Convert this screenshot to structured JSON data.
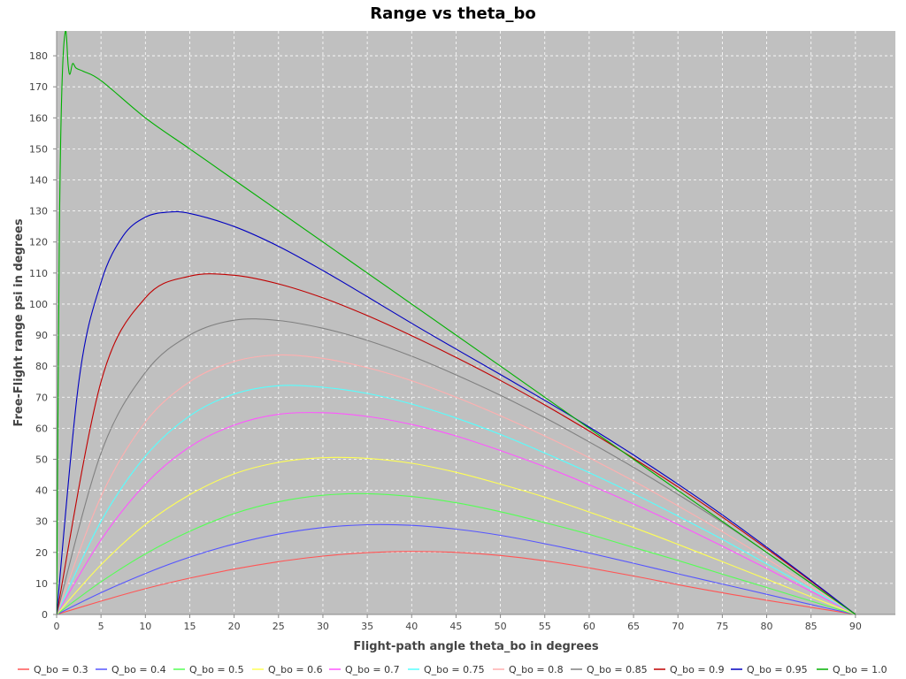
{
  "chart_data": {
    "type": "line",
    "title": "Range vs theta_bo",
    "xlabel": "Flight-path angle theta_bo in degrees",
    "ylabel": "Free-Flight range psi in degrees",
    "xlim": [
      0,
      94.5
    ],
    "ylim": [
      0,
      188
    ],
    "x_ticks": [
      0,
      5,
      10,
      15,
      20,
      25,
      30,
      35,
      40,
      45,
      50,
      55,
      60,
      65,
      70,
      75,
      80,
      85,
      90
    ],
    "y_ticks": [
      0,
      10,
      20,
      30,
      40,
      50,
      60,
      70,
      80,
      90,
      100,
      110,
      120,
      130,
      140,
      150,
      160,
      170,
      180
    ],
    "grid": true,
    "legend_position": "bottom",
    "background_color": "#c0c0c0",
    "series": [
      {
        "name": "Q_bo = 0.3",
        "color": "#ff5555",
        "x": [
          0,
          5,
          10,
          15,
          20,
          25,
          30,
          35,
          40,
          45,
          50,
          55,
          60,
          65,
          70,
          75,
          80,
          85,
          90
        ],
        "values": [
          0,
          4.3,
          8.3,
          11.7,
          14.6,
          17,
          18.8,
          19.9,
          20.3,
          20,
          19,
          17.3,
          15,
          12.4,
          9.6,
          7,
          4.6,
          2.3,
          0
        ]
      },
      {
        "name": "Q_bo = 0.4",
        "color": "#5555ff",
        "x": [
          0,
          5,
          10,
          15,
          20,
          25,
          30,
          35,
          40,
          45,
          50,
          55,
          60,
          65,
          70,
          75,
          80,
          85,
          90
        ],
        "values": [
          0,
          7,
          13.2,
          18.5,
          22.7,
          25.9,
          28,
          28.9,
          28.7,
          27.5,
          25.5,
          22.8,
          19.8,
          16.5,
          13.1,
          9.8,
          6.5,
          3.2,
          0
        ]
      },
      {
        "name": "Q_bo = 0.5",
        "color": "#55ff55",
        "x": [
          0,
          5,
          10,
          15,
          20,
          25,
          30,
          35,
          40,
          45,
          50,
          55,
          60,
          65,
          70,
          75,
          80,
          85,
          90
        ],
        "values": [
          0,
          10.5,
          19.5,
          26.8,
          32.5,
          36.3,
          38.4,
          38.9,
          38,
          36,
          33.1,
          29.6,
          25.8,
          21.6,
          17.4,
          13,
          8.7,
          4.3,
          0
        ]
      },
      {
        "name": "Q_bo = 0.6",
        "color": "#ffff55",
        "x": [
          0,
          5,
          10,
          15,
          20,
          25,
          30,
          35,
          40,
          45,
          50,
          55,
          60,
          65,
          70,
          75,
          80,
          85,
          90
        ],
        "values": [
          0,
          16,
          29,
          38.6,
          45.3,
          49,
          50.5,
          50.3,
          48.7,
          45.8,
          42,
          37.8,
          33,
          28,
          22.6,
          17,
          11.4,
          5.7,
          0
        ]
      },
      {
        "name": "Q_bo = 0.7",
        "color": "#ff55ff",
        "x": [
          0,
          5,
          10,
          15,
          20,
          25,
          30,
          35,
          40,
          45,
          50,
          55,
          60,
          65,
          70,
          75,
          80,
          85,
          90
        ],
        "values": [
          0,
          24,
          42,
          54,
          61,
          64.5,
          65,
          63.8,
          61.2,
          57.5,
          52.8,
          47.6,
          41.8,
          35.6,
          29,
          22,
          14.8,
          7.4,
          0
        ]
      },
      {
        "name": "Q_bo = 0.75",
        "color": "#55ffff",
        "x": [
          0,
          5,
          10,
          15,
          20,
          25,
          30,
          35,
          40,
          45,
          50,
          55,
          60,
          65,
          70,
          75,
          80,
          85,
          90
        ],
        "values": [
          0,
          30,
          51,
          64,
          71,
          73.7,
          73.2,
          71.2,
          67.8,
          63.3,
          58,
          52,
          45.7,
          38.9,
          31.7,
          24.2,
          16.3,
          8.2,
          0
        ]
      },
      {
        "name": "Q_bo = 0.8",
        "color": "#ffafaf",
        "x": [
          0,
          5,
          10,
          15,
          20,
          25,
          30,
          35,
          40,
          45,
          50,
          55,
          60,
          65,
          70,
          75,
          80,
          85,
          90
        ],
        "values": [
          0,
          38,
          62,
          75,
          81.5,
          83.6,
          82.5,
          79.5,
          75.3,
          70,
          64,
          57.5,
          50.5,
          43,
          35,
          26.7,
          18,
          9,
          0
        ]
      },
      {
        "name": "Q_bo = 0.85",
        "color": "#808080",
        "x": [
          0,
          5,
          10,
          15,
          20,
          25,
          30,
          35,
          40,
          45,
          50,
          55,
          60,
          65,
          70,
          75,
          80,
          85,
          90
        ],
        "values": [
          0,
          52,
          78,
          90,
          94.8,
          94.7,
          92.2,
          88.3,
          83.2,
          77.2,
          70.6,
          63.4,
          55.6,
          47.4,
          38.7,
          29.6,
          20,
          10.1,
          0
        ]
      },
      {
        "name": "Q_bo = 0.9",
        "color": "#c00000",
        "x": [
          0,
          5,
          10,
          15,
          20,
          25,
          30,
          35,
          40,
          45,
          50,
          55,
          60,
          65,
          70,
          75,
          80,
          85,
          90
        ],
        "values": [
          0,
          75,
          102,
          109,
          109.3,
          106.5,
          102,
          96.3,
          89.8,
          82.8,
          75.4,
          67.5,
          59.1,
          50.3,
          41.1,
          31.4,
          21.2,
          10.7,
          0
        ]
      },
      {
        "name": "Q_bo = 0.95",
        "color": "#0000c0",
        "x": [
          0,
          2.5,
          5,
          7.5,
          10,
          12.5,
          15,
          20,
          25,
          30,
          35,
          40,
          45,
          50,
          55,
          60,
          65,
          70,
          75,
          80,
          85,
          90
        ],
        "values": [
          0,
          75,
          107,
          122,
          128,
          129.6,
          129.2,
          125,
          118.6,
          110.8,
          102.4,
          93.8,
          85.5,
          77.3,
          69,
          60.4,
          51.4,
          42,
          32.1,
          21.7,
          11,
          0
        ]
      },
      {
        "name": "Q_bo = 1.0",
        "color": "#00b000",
        "x": [
          0,
          0.3,
          0.6,
          1,
          1.3,
          1.5,
          1.8,
          2.2,
          3,
          5,
          10,
          15,
          20,
          25,
          30,
          35,
          40,
          45,
          50,
          55,
          60,
          65,
          70,
          75,
          80,
          85,
          90
        ],
        "values": [
          0,
          120,
          170,
          188,
          177,
          174,
          177.5,
          176,
          175,
          172,
          160,
          150,
          140,
          130,
          120,
          110,
          100,
          90,
          80,
          70,
          60,
          50,
          40,
          30,
          20,
          10,
          0
        ]
      }
    ]
  }
}
